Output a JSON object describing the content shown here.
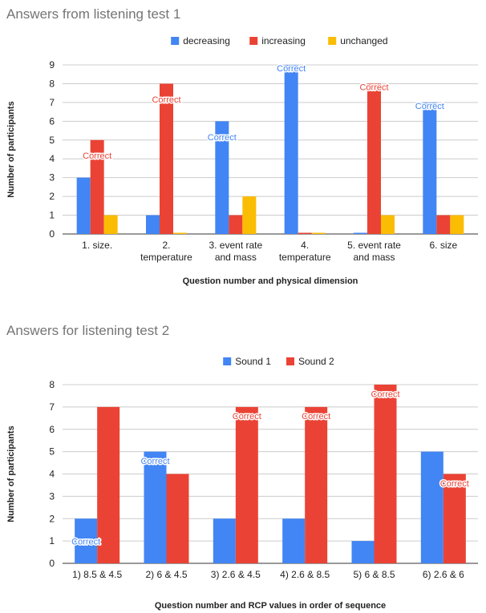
{
  "chart_data": [
    {
      "type": "bar",
      "title": "Answers from listening test 1",
      "xlabel": "Question number and physical dimension",
      "ylabel": "Number of participants",
      "ylim": [
        0,
        9
      ],
      "yticks": [
        "0",
        "1",
        "2",
        "3",
        "4",
        "5",
        "6",
        "7",
        "8",
        "9"
      ],
      "grid": true,
      "legend_position": "top",
      "categories": [
        [
          "1. size."
        ],
        [
          "2.",
          "temperature"
        ],
        [
          "3. event rate",
          "and mass"
        ],
        [
          "4.",
          "temperature"
        ],
        [
          "5. event rate",
          "and mass"
        ],
        [
          "6. size"
        ]
      ],
      "series": [
        {
          "name": "decreasing",
          "color": "#4285f4",
          "values": [
            3,
            1,
            6,
            9,
            0,
            7
          ]
        },
        {
          "name": "increasing",
          "color": "#ea4335",
          "values": [
            5,
            8,
            1,
            0,
            8,
            1
          ]
        },
        {
          "name": "unchanged",
          "color": "#fbbc04",
          "values": [
            1,
            0,
            2,
            0,
            1,
            1
          ]
        }
      ],
      "annotations": [
        {
          "category": 0,
          "series": 1,
          "text": "Correct",
          "offset": 1
        },
        {
          "category": 1,
          "series": 1,
          "text": "Correct",
          "offset": 1
        },
        {
          "category": 2,
          "series": 0,
          "text": "Correct",
          "offset": 1
        },
        {
          "category": 3,
          "series": 0,
          "text": "Correct",
          "offset": 0.35
        },
        {
          "category": 4,
          "series": 1,
          "text": "Correct",
          "offset": 0.35
        },
        {
          "category": 5,
          "series": 0,
          "text": "Correct",
          "offset": 0.35
        }
      ]
    },
    {
      "type": "bar",
      "title": "Answers for listening test 2",
      "xlabel": "Question number and RCP values in order of sequence",
      "ylabel": "Number of participants",
      "ylim": [
        0,
        8
      ],
      "yticks": [
        "0",
        "1",
        "2",
        "3",
        "4",
        "5",
        "6",
        "7",
        "8"
      ],
      "grid": true,
      "legend_position": "top",
      "categories": [
        [
          "1) 8.5 & 4.5"
        ],
        [
          "2) 6 & 4.5"
        ],
        [
          "3) 2.6 & 4.5"
        ],
        [
          "4) 2.6 & 8.5"
        ],
        [
          "5) 6 & 8.5"
        ],
        [
          "6) 2.6 & 6"
        ]
      ],
      "series": [
        {
          "name": "Sound 1",
          "color": "#4285f4",
          "values": [
            2,
            5,
            2,
            2,
            1,
            5
          ]
        },
        {
          "name": "Sound 2",
          "color": "#ea4335",
          "values": [
            7,
            4,
            7,
            7,
            8,
            4
          ]
        }
      ],
      "annotations": [
        {
          "category": 0,
          "series": 0,
          "text": "Correct",
          "offset": 1.15
        },
        {
          "category": 1,
          "series": 0,
          "text": "Correct",
          "offset": 0.55
        },
        {
          "category": 2,
          "series": 1,
          "text": "Correct",
          "offset": 0.55
        },
        {
          "category": 3,
          "series": 1,
          "text": "Correct",
          "offset": 0.55
        },
        {
          "category": 4,
          "series": 1,
          "text": "Correct",
          "offset": 0.55
        },
        {
          "category": 5,
          "series": 1,
          "text": "Correct",
          "offset": 0.55
        }
      ],
      "data_labels": [
        {
          "category": 0,
          "series": 1,
          "text": "7",
          "color": "#ea4335"
        },
        {
          "category": 1,
          "series": 1,
          "text": "4",
          "color": "#ea4335"
        }
      ]
    }
  ]
}
